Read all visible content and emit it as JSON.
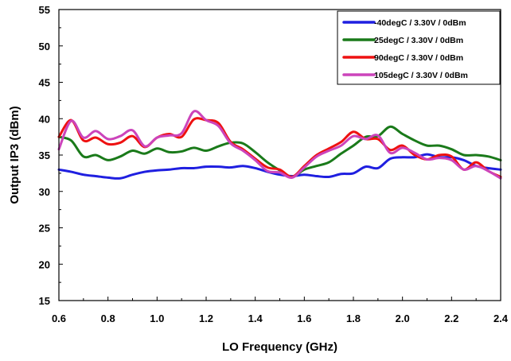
{
  "chart_data": {
    "type": "line",
    "xlabel": "LO Frequency (GHz)",
    "ylabel": "Output  IP3 (dBm)",
    "xlim": [
      0.6,
      2.4
    ],
    "ylim": [
      15,
      55
    ],
    "x_ticks": [
      "0.6",
      "0.8",
      "1.0",
      "1.2",
      "1.4",
      "1.6",
      "1.8",
      "2.0",
      "2.2",
      "2.4"
    ],
    "y_ticks": [
      "15",
      "20",
      "25",
      "30",
      "35",
      "40",
      "45",
      "50",
      "55"
    ],
    "x_tick_values": [
      0.6,
      0.8,
      1.0,
      1.2,
      1.4,
      1.6,
      1.8,
      2.0,
      2.2,
      2.4
    ],
    "y_tick_values": [
      15,
      20,
      25,
      30,
      35,
      40,
      45,
      50,
      55
    ],
    "grid": false,
    "legend_position": "top-right",
    "x": [
      0.6,
      0.65,
      0.7,
      0.75,
      0.8,
      0.85,
      0.9,
      0.95,
      1.0,
      1.05,
      1.1,
      1.15,
      1.2,
      1.25,
      1.3,
      1.35,
      1.4,
      1.45,
      1.5,
      1.55,
      1.6,
      1.65,
      1.7,
      1.75,
      1.8,
      1.85,
      1.9,
      1.95,
      2.0,
      2.05,
      2.1,
      2.15,
      2.2,
      2.25,
      2.3,
      2.35,
      2.4
    ],
    "series": [
      {
        "name": "-40degC /  3.30V /  0dBm",
        "color": "#1f1fe0",
        "values": [
          33.0,
          32.7,
          32.3,
          32.1,
          31.9,
          31.8,
          32.3,
          32.7,
          32.9,
          33.0,
          33.2,
          33.2,
          33.4,
          33.4,
          33.3,
          33.5,
          33.2,
          32.7,
          32.3,
          32.1,
          32.3,
          32.1,
          32.0,
          32.4,
          32.5,
          33.4,
          33.2,
          34.5,
          34.7,
          34.7,
          35.1,
          34.7,
          34.7,
          34.3,
          33.5,
          33.2,
          33.0
        ]
      },
      {
        "name": "25degC /  3.30V /  0dBm",
        "color": "#1a7a1a",
        "values": [
          37.5,
          37.0,
          34.8,
          35.0,
          34.3,
          34.8,
          35.6,
          35.2,
          35.9,
          35.4,
          35.5,
          36.0,
          35.6,
          36.2,
          36.7,
          36.6,
          35.4,
          34.0,
          32.9,
          32.0,
          33.0,
          33.5,
          34.0,
          35.2,
          36.3,
          37.5,
          37.6,
          38.9,
          37.9,
          37.0,
          36.3,
          36.3,
          35.8,
          35.0,
          35.0,
          34.8,
          34.3
        ]
      },
      {
        "name": "90degC /  3.30V /  0dBm",
        "color": "#ee1111",
        "values": [
          37.5,
          39.8,
          37.0,
          37.4,
          36.5,
          36.7,
          37.6,
          36.1,
          37.4,
          37.9,
          37.5,
          39.9,
          39.8,
          39.4,
          36.8,
          35.8,
          34.5,
          33.3,
          33.0,
          32.0,
          33.5,
          35.0,
          35.9,
          36.8,
          38.2,
          37.2,
          37.2,
          35.7,
          36.3,
          35.0,
          34.4,
          35.0,
          34.8,
          33.0,
          34.0,
          32.8,
          32.0
        ]
      },
      {
        "name": "105degC /  3.30V /  0dBm",
        "color": "#cc44bb",
        "values": [
          35.8,
          39.7,
          37.4,
          38.3,
          37.2,
          37.6,
          38.4,
          36.2,
          37.4,
          37.7,
          38.0,
          41.0,
          39.8,
          39.0,
          36.6,
          35.6,
          34.3,
          32.8,
          32.6,
          31.9,
          33.3,
          34.8,
          35.6,
          36.3,
          37.6,
          37.2,
          37.7,
          35.3,
          36.0,
          35.3,
          34.4,
          34.6,
          34.3,
          33.0,
          33.5,
          32.8,
          31.8
        ]
      }
    ]
  }
}
